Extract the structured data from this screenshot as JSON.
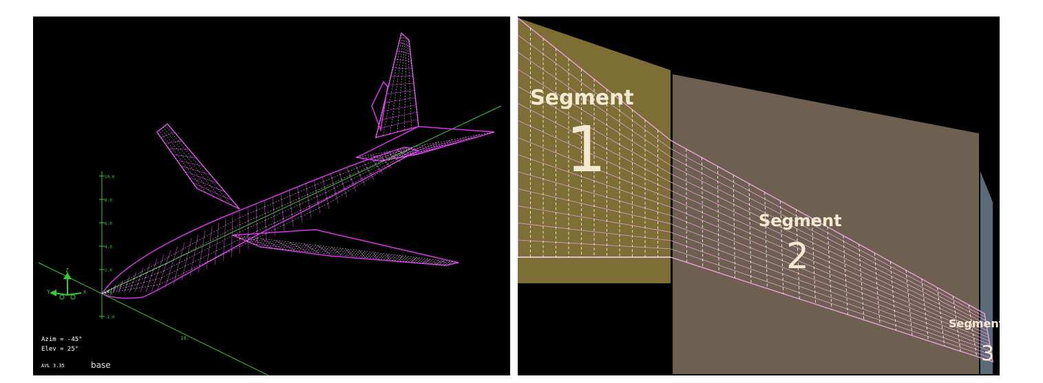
{
  "left_view": {
    "axis_triad": {
      "z_label": "Z",
      "y_label": "Y",
      "x_label": "X"
    },
    "vertical_axis_ticks": [
      "10.0",
      "8.0",
      "6.0",
      "4.0",
      "2.0",
      "0.0",
      "-2.0"
    ],
    "ground_tick_label": "10.",
    "status_lines": {
      "azimuth": "Azim = -45°",
      "elevation": "Elev = 25°"
    },
    "version_label": "AVL 3.35",
    "config_name": "base"
  },
  "right_view": {
    "segments": [
      {
        "word": "Segment",
        "number": "1"
      },
      {
        "word": "Segment",
        "number": "2"
      },
      {
        "word": "Segment",
        "number": "3"
      }
    ]
  },
  "colors": {
    "background": "#000000",
    "mesh_magenta": "#dd33ee",
    "mesh_white": "#ffffff",
    "axis_green": "#33cc33",
    "segment1_fill": "#8a7a3a",
    "segment2_fill": "#7a6a5a",
    "segment3_fill": "#5a6a78",
    "segment_label": "#f4ead2",
    "wing_mesh_pink": "#e79bd9"
  }
}
